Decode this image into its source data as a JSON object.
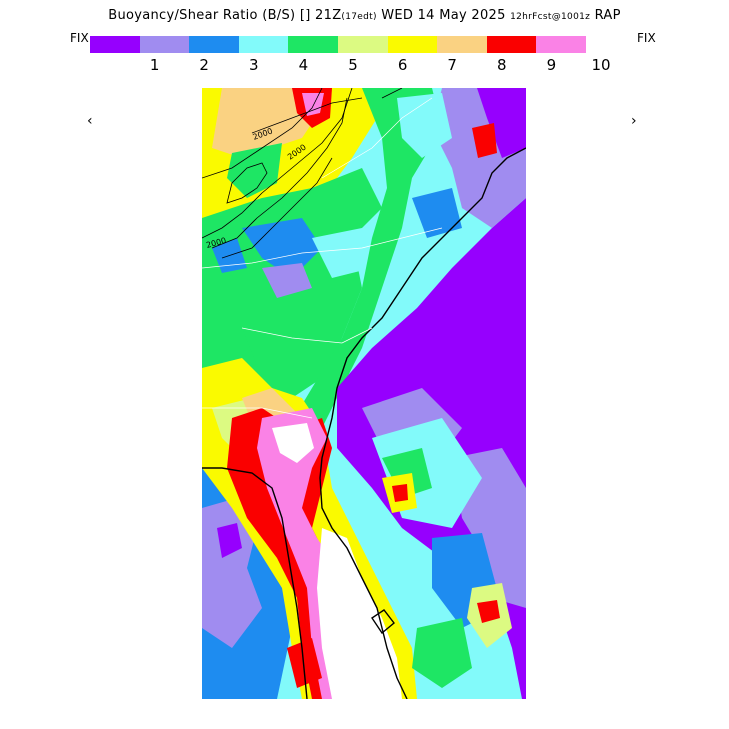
{
  "header": {
    "title": "Buoyancy/Shear Ratio (B/S)",
    "sep": "[]",
    "valid": "21Z",
    "local": "(17edt)",
    "date": "WED 14 May 2025",
    "run": "12hrFcst@1001z",
    "model": "RAP"
  },
  "legend": {
    "fix_left": "FIX",
    "fix_right": "FIX",
    "prev": "‹",
    "next": "›",
    "colors": [
      "#9600fe",
      "#a08cf0",
      "#1e8cf0",
      "#82fafa",
      "#1ee664",
      "#dcfa82",
      "#fafa00",
      "#fad282",
      "#fa0000",
      "#fa82e6"
    ],
    "ticks": [
      "1",
      "2",
      "3",
      "4",
      "5",
      "6",
      "7",
      "8",
      "9",
      "10"
    ]
  },
  "map": {
    "contour_labels": [
      "2000",
      "2000",
      "2000"
    ],
    "colors": {
      "purple": "#9600fe",
      "lavender": "#a08cf0",
      "blue": "#1e8cf0",
      "cyan": "#82fafa",
      "green": "#1ee664",
      "lightgreen": "#dcfa82",
      "yellow": "#fafa00",
      "peach": "#fad282",
      "red": "#fa0000",
      "pink": "#fa82e6",
      "white": "#ffffff"
    }
  }
}
